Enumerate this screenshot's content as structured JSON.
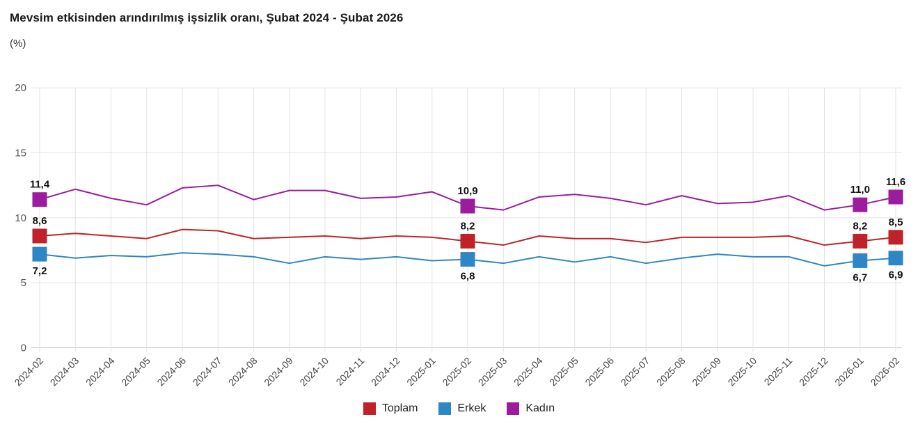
{
  "header": {
    "title": "Mevsim etkisinden arındırılmış işsizlik oranı, Şubat 2024 - Şubat 2026",
    "subtitle": "(%)"
  },
  "chart_data": {
    "type": "line",
    "title": "Mevsim etkisinden arındırılmış işsizlik oranı, Şubat 2024 - Şubat 2026",
    "subtitle": "(%)",
    "x": [
      "2024-02",
      "2024-03",
      "2024-04",
      "2024-05",
      "2024-06",
      "2024-07",
      "2024-08",
      "2024-09",
      "2024-10",
      "2024-11",
      "2024-12",
      "2025-01",
      "2025-02",
      "2025-03",
      "2025-04",
      "2025-05",
      "2025-06",
      "2025-07",
      "2025-08",
      "2025-09",
      "2025-10",
      "2025-11",
      "2025-12",
      "2026-01",
      "2026-02"
    ],
    "ylim": [
      0,
      20
    ],
    "yticks": [
      0,
      5,
      10,
      15,
      20
    ],
    "grid": true,
    "legend_position": "bottom",
    "decimal_separator": ",",
    "labeled_months": [
      "2024-02",
      "2025-02",
      "2026-01",
      "2026-02"
    ],
    "series": [
      {
        "name": "Toplam",
        "color": "#bf2329",
        "label_position": "above",
        "values": [
          8.6,
          8.8,
          8.6,
          8.4,
          9.1,
          9.0,
          8.4,
          8.5,
          8.6,
          8.4,
          8.6,
          8.5,
          8.2,
          7.9,
          8.6,
          8.4,
          8.4,
          8.1,
          8.5,
          8.5,
          8.5,
          8.6,
          7.9,
          8.2,
          8.5
        ],
        "labeled_values": {
          "2024-02": "8,6",
          "2025-02": "8,2",
          "2026-01": "8,2",
          "2026-02": "8,5"
        }
      },
      {
        "name": "Erkek",
        "color": "#2f86c4",
        "label_position": "below",
        "values": [
          7.2,
          6.9,
          7.1,
          7.0,
          7.3,
          7.2,
          7.0,
          6.5,
          7.0,
          6.8,
          7.0,
          6.7,
          6.8,
          6.5,
          7.0,
          6.6,
          7.0,
          6.5,
          6.9,
          7.2,
          7.0,
          7.0,
          6.3,
          6.7,
          6.9
        ],
        "labeled_values": {
          "2024-02": "7,2",
          "2025-02": "6,8",
          "2026-01": "6,7",
          "2026-02": "6,9"
        }
      },
      {
        "name": "Kadın",
        "color": "#9b1d9e",
        "label_position": "above",
        "values": [
          11.4,
          12.2,
          11.5,
          11.0,
          12.3,
          12.5,
          11.4,
          12.1,
          12.1,
          11.5,
          11.6,
          12.0,
          10.9,
          10.6,
          11.6,
          11.8,
          11.5,
          11.0,
          11.7,
          11.1,
          11.2,
          11.7,
          10.6,
          11.0,
          11.6
        ],
        "labeled_values": {
          "2024-02": "11,4",
          "2025-02": "10,9",
          "2026-01": "11,0",
          "2026-02": "11,6"
        }
      }
    ],
    "colors": {
      "grid": "#e3e3e3",
      "axis": "#cccccc",
      "tick_text": "#555555",
      "data_label": "#111111"
    }
  }
}
